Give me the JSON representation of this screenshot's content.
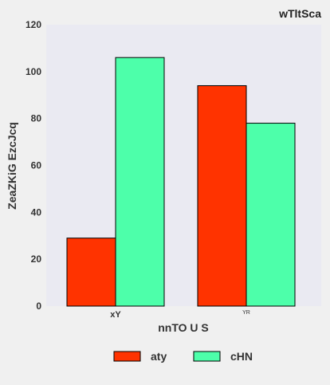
{
  "chart_data": {
    "type": "bar",
    "title": "wTltSca",
    "xlabel": "nnTO U S",
    "ylabel": "ZeaZKiG EzcJcq",
    "categories": [
      "xY",
      "YR"
    ],
    "series": [
      {
        "name": "aty",
        "values": [
          29,
          94
        ],
        "color": "#ff3300"
      },
      {
        "name": "cHN",
        "values": [
          106,
          78
        ],
        "color": "#4dffaa"
      }
    ],
    "ylim": [
      0,
      120
    ],
    "yticks": [
      0,
      20,
      40,
      60,
      80,
      100,
      120
    ],
    "grid": false,
    "legend_position": "bottom",
    "plot_background": "#eaeaf2"
  }
}
